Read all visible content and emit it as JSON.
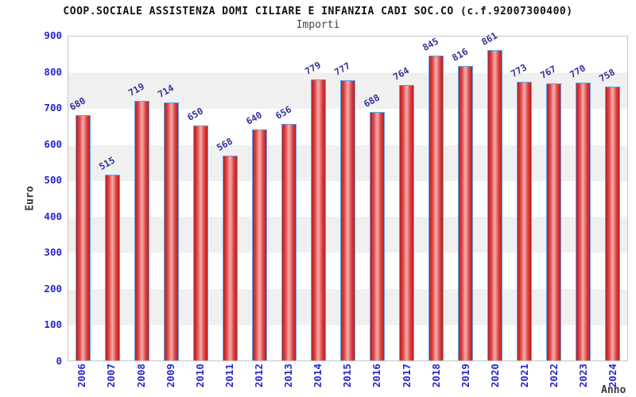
{
  "header": {
    "title": "COOP.SOCIALE ASSISTENZA DOMI CILIARE E INFANZIA CADI SOC.CO (c.f.92007300400)",
    "subtitle": "Importi"
  },
  "chart_data": {
    "type": "bar",
    "title": "COOP.SOCIALE ASSISTENZA DOMI CILIARE E INFANZIA CADI SOC.CO (c.f.92007300400)",
    "subtitle": "Importi",
    "xlabel": "Anno",
    "ylabel": "Euro",
    "categories": [
      "2006",
      "2007",
      "2008",
      "2009",
      "2010",
      "2011",
      "2012",
      "2013",
      "2014",
      "2015",
      "2016",
      "2017",
      "2018",
      "2019",
      "2020",
      "2021",
      "2022",
      "2023",
      "2024"
    ],
    "values": [
      680,
      515,
      719,
      714,
      650,
      568,
      640,
      656,
      779,
      777,
      688,
      764,
      845,
      816,
      861,
      773,
      767,
      770,
      758
    ],
    "ylim": [
      0,
      900
    ],
    "yticks": [
      0,
      100,
      200,
      300,
      400,
      500,
      600,
      700,
      800,
      900
    ],
    "grid": "alternating-horizontal-bands",
    "legend": "none",
    "colors": {
      "bar_fill_edge": "#bb1e1e",
      "bar_fill_center": "#f3b0ae",
      "bar_border": "#58a6f0",
      "value_label": "#333399",
      "tick_label": "#2626cc",
      "band_gray": "#f0f0f1",
      "plot_border": "#c6c6c6",
      "title": "#111111",
      "subtitle": "#444444"
    }
  }
}
